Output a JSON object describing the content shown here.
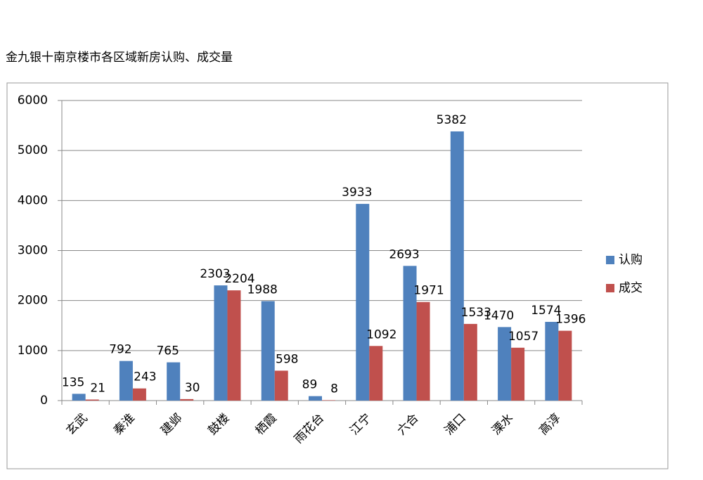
{
  "chart_data": {
    "type": "bar",
    "title": "金九银十南京楼市各区域新房认购、成交量",
    "categories": [
      "玄武",
      "秦淮",
      "建邺",
      "鼓楼",
      "栖霞",
      "雨花台",
      "江宁",
      "六合",
      "浦口",
      "溧水",
      "高淳"
    ],
    "series": [
      {
        "name": "认购",
        "color": "#4f81bd",
        "values": [
          135,
          792,
          765,
          2303,
          1988,
          89,
          3933,
          2693,
          5382,
          1470,
          1574
        ]
      },
      {
        "name": "成交",
        "color": "#c0504d",
        "values": [
          21,
          243,
          30,
          2204,
          598,
          8,
          1092,
          1971,
          1533,
          1057,
          1396
        ]
      }
    ],
    "ylim": [
      0,
      6000
    ],
    "yticks": [
      0,
      1000,
      2000,
      3000,
      4000,
      5000,
      6000
    ],
    "grid": true,
    "legend": "right"
  }
}
